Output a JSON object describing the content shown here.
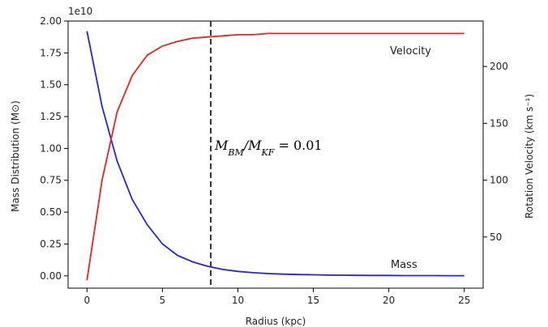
{
  "chart_data": {
    "type": "line",
    "x": [
      0,
      1,
      2,
      3,
      4,
      5,
      6,
      7,
      8,
      9,
      10,
      11,
      12,
      13,
      14,
      15,
      16,
      17,
      18,
      19,
      20,
      21,
      22,
      23,
      24,
      25
    ],
    "series": [
      {
        "key": "mass",
        "axis": "left",
        "color": "#2222ee",
        "values": [
          1.92,
          1.33,
          0.9,
          0.6,
          0.4,
          0.25,
          0.16,
          0.11,
          0.075,
          0.05,
          0.035,
          0.025,
          0.018,
          0.013,
          0.01,
          0.008,
          0.006,
          0.005,
          0.004,
          0.003,
          0.003,
          0.002,
          0.002,
          0.002,
          0.001,
          0.001
        ]
      },
      {
        "key": "velocity",
        "axis": "right",
        "color": "#ee2222",
        "values": [
          12,
          100,
          160,
          192,
          210,
          218,
          222,
          225,
          226,
          227,
          228,
          228,
          229,
          229,
          229,
          229,
          229,
          229,
          229,
          229,
          229,
          229,
          229,
          229,
          229,
          229
        ]
      }
    ],
    "xlabel": "Radius (kpc)",
    "ylabel_left": "Mass Distribution (M⊙)",
    "ylabel_right": "Rotation Velocity (km s⁻¹)",
    "xlim": [
      -1.25,
      26.25
    ],
    "ylim_left": [
      -0.0966,
      2.0
    ],
    "ylim_right": [
      5,
      240
    ],
    "x_ticks": [
      0,
      5,
      10,
      15,
      20,
      25
    ],
    "y_left_ticks": [
      0.0,
      0.25,
      0.5,
      0.75,
      1.0,
      1.25,
      1.5,
      1.75,
      2.0
    ],
    "y_left_tick_labels": [
      "0.00",
      "0.25",
      "0.50",
      "0.75",
      "1.00",
      "1.25",
      "1.50",
      "1.75",
      "2.00"
    ],
    "y_right_ticks": [
      50,
      100,
      150,
      200
    ],
    "y_left_exponent": "1e10",
    "vline_x": 8.2,
    "annotations": {
      "velocity_label": "Velocity",
      "mass_label": "Mass",
      "ratio_label": "M_BM/M_KF = 0.01"
    },
    "grid": false
  }
}
